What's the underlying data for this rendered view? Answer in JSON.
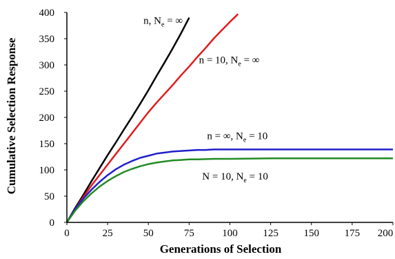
{
  "chart_data": {
    "type": "line",
    "xlabel": "Generations of Selection",
    "ylabel": "Cumulative Selection Response",
    "xlim": [
      0,
      200
    ],
    "ylim": [
      0,
      400
    ],
    "x_ticks": [
      "0",
      "25",
      "50",
      "75",
      "100",
      "125",
      "150",
      "175",
      "200"
    ],
    "y_ticks": [
      "0",
      "50",
      "100",
      "150",
      "200",
      "250",
      "300",
      "350",
      "400"
    ],
    "grid": false,
    "series": [
      {
        "name": "n, Ne = ∞",
        "color": "#000000",
        "x": [
          0,
          5,
          10,
          15,
          20,
          25,
          30,
          35,
          40,
          45,
          50,
          55,
          60,
          65,
          70,
          75
        ],
        "y": [
          0,
          27,
          52,
          78,
          103,
          128,
          152,
          177,
          201,
          226,
          252,
          279,
          305,
          332,
          360,
          390
        ]
      },
      {
        "name": "n = 10, Ne = ∞",
        "color": "#e31a1c",
        "x": [
          0,
          5,
          10,
          15,
          20,
          25,
          30,
          35,
          40,
          45,
          50,
          55,
          60,
          65,
          70,
          75,
          80,
          85,
          90,
          95,
          100,
          105
        ],
        "y": [
          0,
          25,
          48,
          70,
          90,
          110,
          130,
          150,
          170,
          190,
          210,
          228,
          245,
          262,
          280,
          297,
          315,
          332,
          350,
          366,
          382,
          397
        ]
      },
      {
        "name": "n = ∞, Ne = 10",
        "color": "#1f1fcc",
        "x": [
          0,
          5,
          10,
          15,
          20,
          25,
          30,
          35,
          40,
          45,
          50,
          55,
          60,
          65,
          70,
          75,
          80,
          85,
          90,
          100,
          125,
          150,
          175,
          200
        ],
        "y": [
          0,
          25,
          45,
          62,
          77,
          90,
          101,
          110,
          117,
          123,
          127,
          131,
          133,
          135,
          136,
          137,
          138,
          138,
          139,
          139,
          139,
          139,
          139,
          139
        ]
      },
      {
        "name": "N = 10, Ne = 10",
        "color": "#228b22",
        "x": [
          0,
          5,
          10,
          15,
          20,
          25,
          30,
          35,
          40,
          45,
          50,
          55,
          60,
          65,
          70,
          75,
          80,
          90,
          100,
          125,
          150,
          175,
          200
        ],
        "y": [
          0,
          22,
          40,
          55,
          68,
          79,
          88,
          96,
          102,
          107,
          111,
          114,
          116,
          118,
          119,
          120,
          120,
          121,
          121,
          122,
          122,
          122,
          122
        ]
      }
    ],
    "annotations": [
      {
        "main": "n, N",
        "sub": "e",
        "rest": " = ∞",
        "x": 47,
        "y": 385
      },
      {
        "main": "n = 10, N",
        "sub": "e",
        "rest": " = ∞",
        "x": 81,
        "y": 310
      },
      {
        "main": "n = ∞, N",
        "sub": "e",
        "rest": " = 10",
        "x": 86,
        "y": 165
      },
      {
        "main": "N = 10, N",
        "sub": "e",
        "rest": " = 10",
        "x": 83,
        "y": 88
      }
    ]
  }
}
